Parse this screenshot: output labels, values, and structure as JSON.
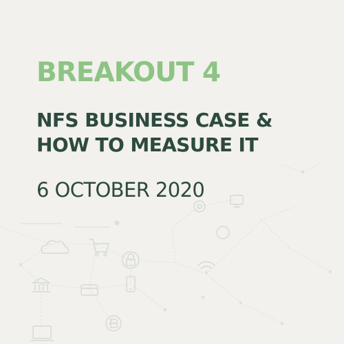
{
  "slide": {
    "eyebrow": "BREAKOUT 4",
    "title_lines": [
      "NFS BUSINESS CASE &",
      "HOW TO MEASURE IT"
    ],
    "date": "6 OCTOBER 2020"
  },
  "background": {
    "icons": [
      "cloud-icon",
      "shopping-cart-icon",
      "padlock-icon",
      "bank-icon",
      "credit-card-icon",
      "bitcoin-icon",
      "wifi-icon",
      "laptop-icon",
      "smartphone-icon"
    ]
  },
  "colors": {
    "background": "#f2f1ed",
    "accent_green": "#8dc484",
    "dark_green": "#2d4a3e"
  }
}
